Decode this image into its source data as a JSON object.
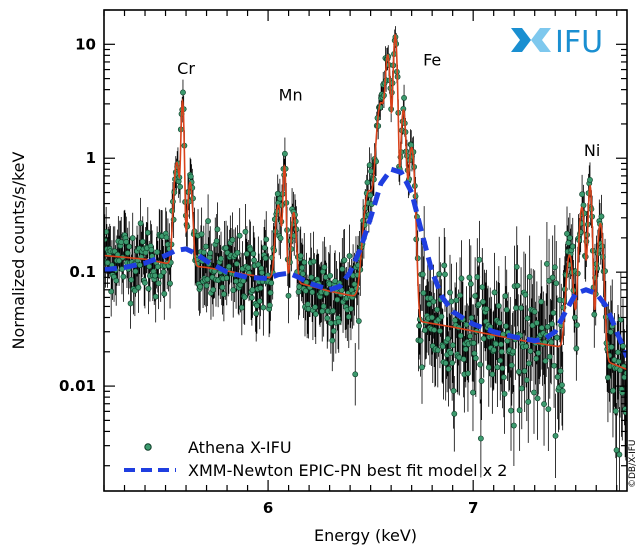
{
  "chart_data": {
    "type": "line",
    "title": "",
    "xlabel": "Energy (keV)",
    "ylabel": "Normalized counts/s/keV",
    "xlim": [
      5.2,
      7.75
    ],
    "ylim": [
      0.0012,
      20
    ],
    "yscale": "log",
    "xticks": [
      6,
      7
    ],
    "xtick_labels": [
      "6",
      "7"
    ],
    "yticks": [
      0.01,
      0.1,
      1,
      10
    ],
    "ytick_labels": [
      "0.01",
      "0.1",
      "1",
      "10"
    ],
    "grid": false,
    "legend_position": "bottom-left",
    "line_labels": [
      {
        "text": "Cr",
        "x": 5.6,
        "y": 5.5
      },
      {
        "text": "Mn",
        "x": 6.11,
        "y": 3.2
      },
      {
        "text": "Fe",
        "x": 6.8,
        "y": 6.5
      },
      {
        "text": "Ni",
        "x": 7.58,
        "y": 1.05
      }
    ],
    "series": [
      {
        "name": "Athena X-IFU",
        "kind": "data-points",
        "color": "#3c9a6e",
        "errorbar_color": "#000000",
        "continuum": [
          [
            5.2,
            0.14
          ],
          [
            5.3,
            0.135
          ],
          [
            5.4,
            0.13
          ],
          [
            5.5,
            0.12
          ],
          [
            5.7,
            0.11
          ],
          [
            5.9,
            0.095
          ],
          [
            6.1,
            0.085
          ],
          [
            6.3,
            0.068
          ],
          [
            6.45,
            0.06
          ],
          [
            6.55,
            0.05
          ],
          [
            6.7,
            0.038
          ],
          [
            6.9,
            0.033
          ],
          [
            7.1,
            0.028
          ],
          [
            7.3,
            0.024
          ],
          [
            7.5,
            0.021
          ],
          [
            7.75,
            0.014
          ]
        ],
        "lines": [
          {
            "center": 5.583,
            "width": 0.006,
            "peak": 3.0
          },
          {
            "center": 5.555,
            "width": 0.012,
            "peak": 0.8
          },
          {
            "center": 5.62,
            "width": 0.01,
            "peak": 0.5
          },
          {
            "center": 6.08,
            "width": 0.006,
            "peak": 0.75
          },
          {
            "center": 6.05,
            "width": 0.012,
            "peak": 0.3
          },
          {
            "center": 6.125,
            "width": 0.01,
            "peak": 0.25
          },
          {
            "center": 6.62,
            "width": 0.008,
            "peak": 12.0
          },
          {
            "center": 6.584,
            "width": 0.01,
            "peak": 7.5
          },
          {
            "center": 6.55,
            "width": 0.018,
            "peak": 3.0
          },
          {
            "center": 6.66,
            "width": 0.01,
            "peak": 2.6
          },
          {
            "center": 6.7,
            "width": 0.012,
            "peak": 1.2
          },
          {
            "center": 6.49,
            "width": 0.02,
            "peak": 0.45
          },
          {
            "center": 7.57,
            "width": 0.008,
            "peak": 0.55
          },
          {
            "center": 7.53,
            "width": 0.012,
            "peak": 0.35
          },
          {
            "center": 7.62,
            "width": 0.012,
            "peak": 0.25
          },
          {
            "center": 7.47,
            "width": 0.014,
            "peak": 0.12
          }
        ]
      },
      {
        "name": "",
        "kind": "model-line",
        "color": "#d9421b",
        "follows": "Athena X-IFU"
      },
      {
        "name": "XMM-Newton EPIC-PN best fit model x 2",
        "kind": "dashed-line",
        "color": "#1f3ee0",
        "points": [
          [
            5.2,
            0.105
          ],
          [
            5.3,
            0.11
          ],
          [
            5.4,
            0.12
          ],
          [
            5.5,
            0.14
          ],
          [
            5.55,
            0.155
          ],
          [
            5.6,
            0.16
          ],
          [
            5.65,
            0.145
          ],
          [
            5.7,
            0.125
          ],
          [
            5.8,
            0.1
          ],
          [
            5.9,
            0.09
          ],
          [
            6.0,
            0.088
          ],
          [
            6.05,
            0.095
          ],
          [
            6.1,
            0.098
          ],
          [
            6.15,
            0.09
          ],
          [
            6.2,
            0.08
          ],
          [
            6.3,
            0.07
          ],
          [
            6.35,
            0.075
          ],
          [
            6.4,
            0.1
          ],
          [
            6.45,
            0.16
          ],
          [
            6.5,
            0.3
          ],
          [
            6.55,
            0.6
          ],
          [
            6.6,
            0.8
          ],
          [
            6.65,
            0.75
          ],
          [
            6.7,
            0.5
          ],
          [
            6.75,
            0.22
          ],
          [
            6.8,
            0.1
          ],
          [
            6.85,
            0.06
          ],
          [
            6.9,
            0.045
          ],
          [
            7.0,
            0.035
          ],
          [
            7.1,
            0.03
          ],
          [
            7.2,
            0.027
          ],
          [
            7.3,
            0.025
          ],
          [
            7.35,
            0.026
          ],
          [
            7.4,
            0.03
          ],
          [
            7.45,
            0.045
          ],
          [
            7.5,
            0.065
          ],
          [
            7.55,
            0.07
          ],
          [
            7.6,
            0.065
          ],
          [
            7.65,
            0.05
          ],
          [
            7.7,
            0.03
          ],
          [
            7.75,
            0.018
          ]
        ]
      }
    ]
  },
  "logo": {
    "text": "IFU",
    "color": "#1a8fd1"
  },
  "credit": "©DB/X-IFU"
}
